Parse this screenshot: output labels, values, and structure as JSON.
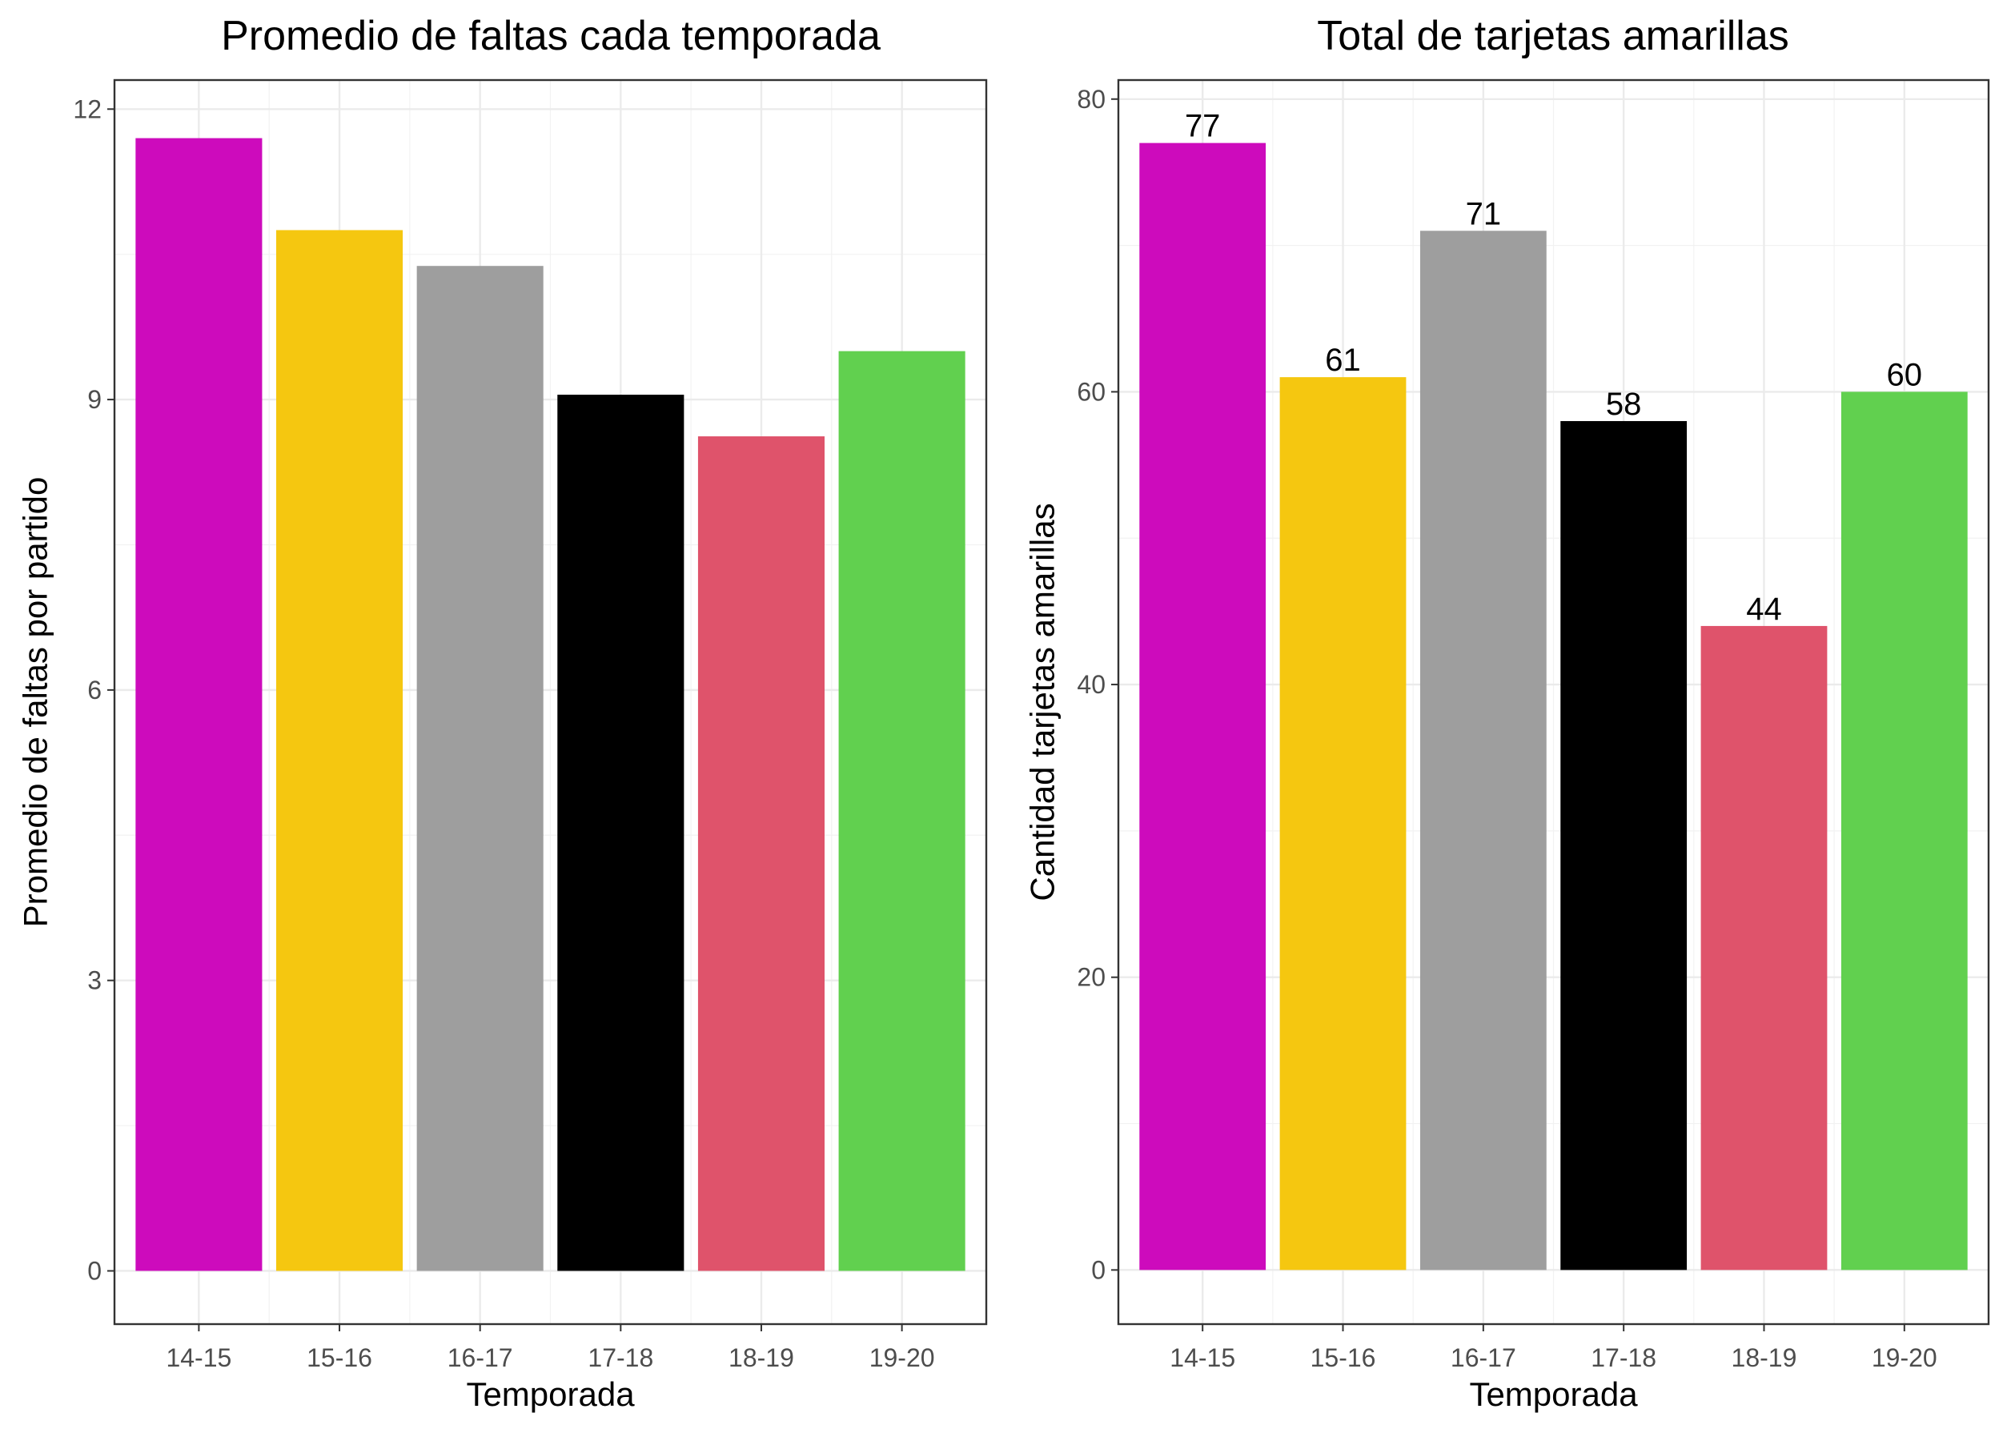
{
  "chart_data": [
    {
      "type": "bar",
      "title": "Promedio de faltas cada temporada",
      "xlabel": "Temporada",
      "ylabel": "Promedio de faltas por partido",
      "categories": [
        "14-15",
        "15-16",
        "16-17",
        "17-18",
        "18-19",
        "19-20"
      ],
      "values": [
        11.7,
        10.75,
        10.38,
        9.05,
        8.62,
        9.5
      ],
      "colors": [
        "#CD0BBC",
        "#F5C710",
        "#9E9E9E",
        "#000000",
        "#DF536B",
        "#61D04F"
      ],
      "ylim": [
        -0.55,
        12.3
      ],
      "yticks": [
        0,
        3,
        6,
        9,
        12
      ],
      "ytick_labels": [
        "0",
        "3",
        "6",
        "9",
        "12"
      ],
      "show_data_labels": false,
      "grid": true,
      "legend": "none"
    },
    {
      "type": "bar",
      "title": "Total de tarjetas amarillas",
      "xlabel": "Temporada",
      "ylabel": "Cantidad tarjetas amarillas",
      "categories": [
        "14-15",
        "15-16",
        "16-17",
        "17-18",
        "18-19",
        "19-20"
      ],
      "values": [
        77,
        61,
        71,
        58,
        44,
        60
      ],
      "data_labels": [
        "77",
        "61",
        "71",
        "58",
        "44",
        "60"
      ],
      "colors": [
        "#CD0BBC",
        "#F5C710",
        "#9E9E9E",
        "#000000",
        "#DF536B",
        "#61D04F"
      ],
      "ylim": [
        -3.7,
        81.3
      ],
      "yticks": [
        0,
        20,
        40,
        60,
        80
      ],
      "ytick_labels": [
        "0",
        "20",
        "40",
        "60",
        "80"
      ],
      "show_data_labels": true,
      "grid": true,
      "legend": "none"
    }
  ]
}
